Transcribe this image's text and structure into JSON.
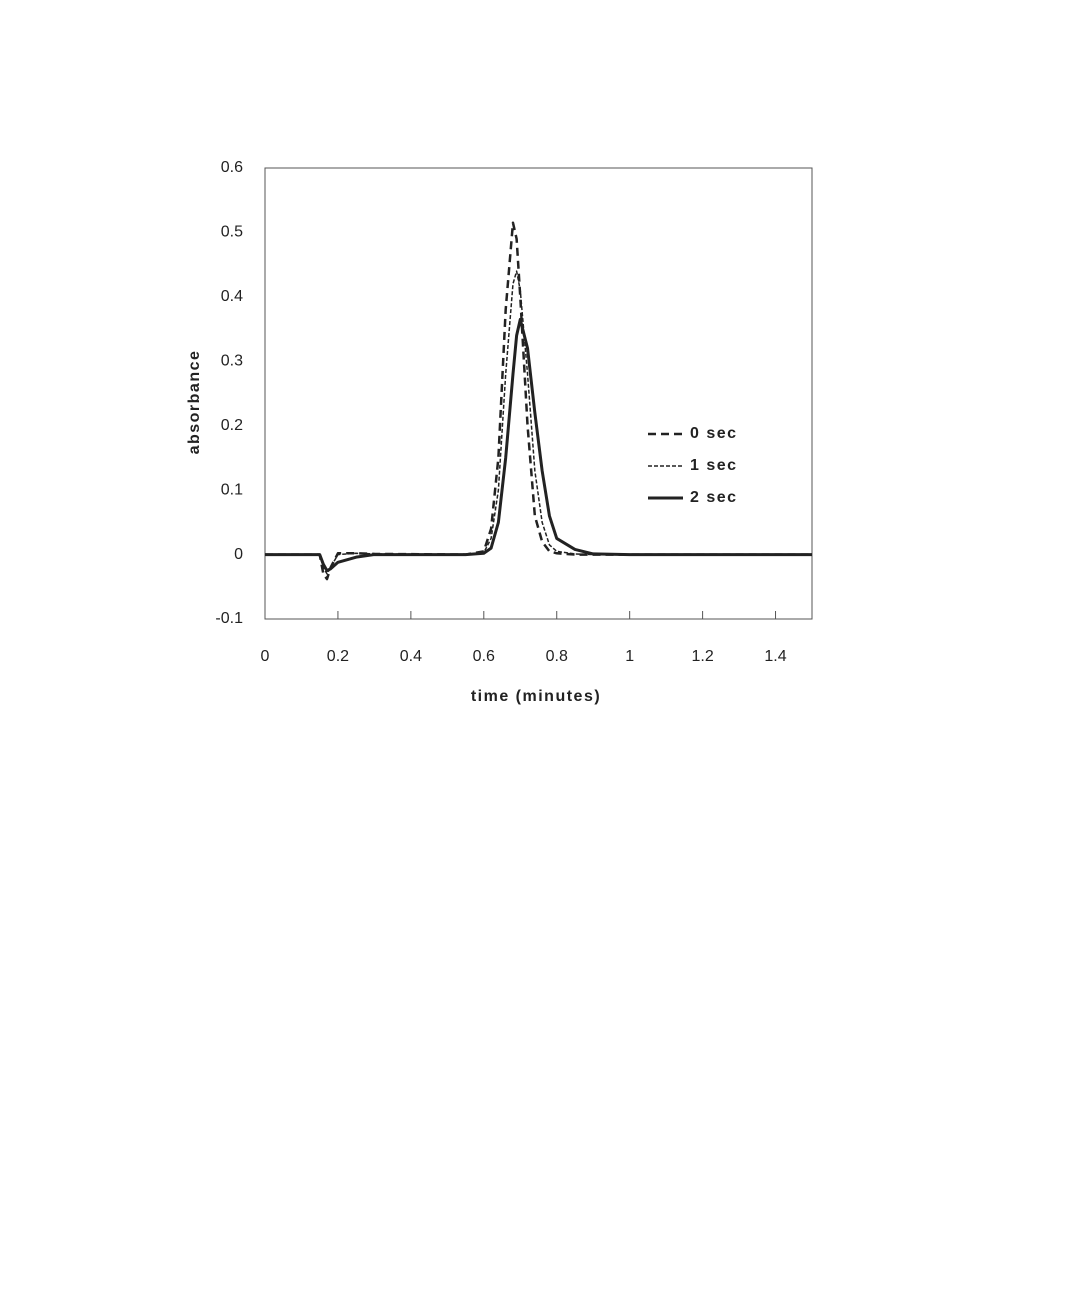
{
  "chart_data": {
    "type": "line",
    "x_label": "time (minutes)",
    "y_label": "absorbance",
    "x": [
      0,
      0.15,
      0.16,
      0.17,
      0.18,
      0.2,
      0.25,
      0.3,
      0.55,
      0.6,
      0.62,
      0.64,
      0.66,
      0.68,
      0.69,
      0.7,
      0.72,
      0.74,
      0.76,
      0.78,
      0.8,
      0.85,
      0.9,
      1.0,
      1.5
    ],
    "series": [
      {
        "name": "0 sec",
        "color": "#222222",
        "line_style": "dashed",
        "values": [
          0,
          0,
          -0.03,
          -0.038,
          -0.02,
          0.002,
          0.002,
          0.001,
          0,
          0.005,
          0.04,
          0.15,
          0.38,
          0.515,
          0.49,
          0.4,
          0.2,
          0.06,
          0.02,
          0.005,
          0.002,
          0,
          0,
          0,
          0
        ]
      },
      {
        "name": "1 sec",
        "color": "#222222",
        "line_style": "dotted",
        "values": [
          0,
          0,
          -0.02,
          -0.03,
          -0.02,
          0,
          0.002,
          0.001,
          0,
          0.003,
          0.025,
          0.1,
          0.28,
          0.42,
          0.44,
          0.41,
          0.28,
          0.13,
          0.05,
          0.015,
          0.005,
          0.001,
          0,
          0,
          0
        ]
      },
      {
        "name": "2 sec",
        "color": "#222222",
        "line_style": "solid",
        "values": [
          0,
          0,
          -0.015,
          -0.025,
          -0.022,
          -0.012,
          -0.004,
          0,
          0,
          0.002,
          0.01,
          0.05,
          0.15,
          0.28,
          0.34,
          0.365,
          0.32,
          0.22,
          0.13,
          0.06,
          0.025,
          0.008,
          0.001,
          0,
          0
        ]
      }
    ],
    "xlim": [
      0,
      1.5
    ],
    "xticks": [
      0,
      0.2,
      0.4,
      0.6,
      0.8,
      1,
      1.2,
      1.4
    ],
    "ylim": [
      -0.1,
      0.6
    ],
    "yticks": [
      -0.1,
      0,
      0.1,
      0.2,
      0.3,
      0.4,
      0.5,
      0.6
    ],
    "grid": false,
    "legend": "right"
  }
}
